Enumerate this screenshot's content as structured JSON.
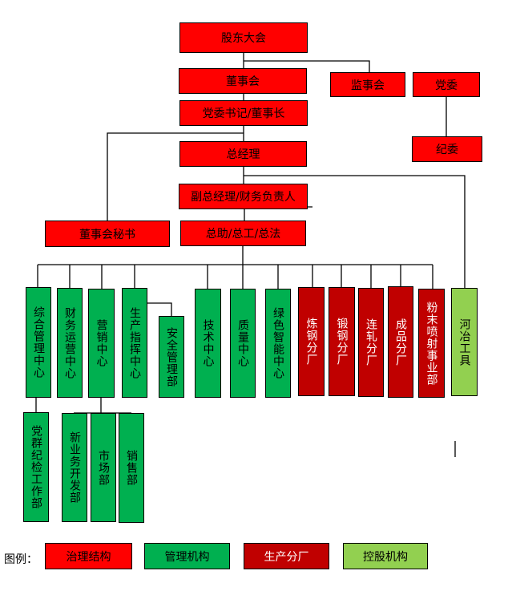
{
  "colors": {
    "governance": "#ff0000",
    "management": "#00b050",
    "production": "#c00000",
    "holding": "#92d050"
  },
  "governance": {
    "shareholders_meeting": "股东大会",
    "board": "董事会",
    "supervisory_board": "监事会",
    "party_committee": "党委",
    "party_secretary_chairman": "党委书记/董事长",
    "discipline_committee": "纪委",
    "general_manager": "总经理",
    "deputy_gm_cfo": "副总经理/财务负责人",
    "board_secretary": "董事会秘书",
    "assistants": "总助/总工/总法"
  },
  "departments": [
    "综合管理中心",
    "财务运营中心",
    "营销中心",
    "生产指挥中心",
    "安全管理部",
    "技术中心",
    "质量中心",
    "绿色智能中心"
  ],
  "plants": [
    "炼钢分厂",
    "锻钢分厂",
    "连轧分厂",
    "成品分厂",
    "粉末喷射事业部"
  ],
  "holding": [
    "河冶工具"
  ],
  "sub_departments": [
    "党群纪检工作部",
    "新业务开发部",
    "市场部",
    "销售部"
  ],
  "legend": {
    "label": "图例：",
    "items": [
      "治理结构",
      "管理机构",
      "生产分厂",
      "控股机构"
    ]
  }
}
